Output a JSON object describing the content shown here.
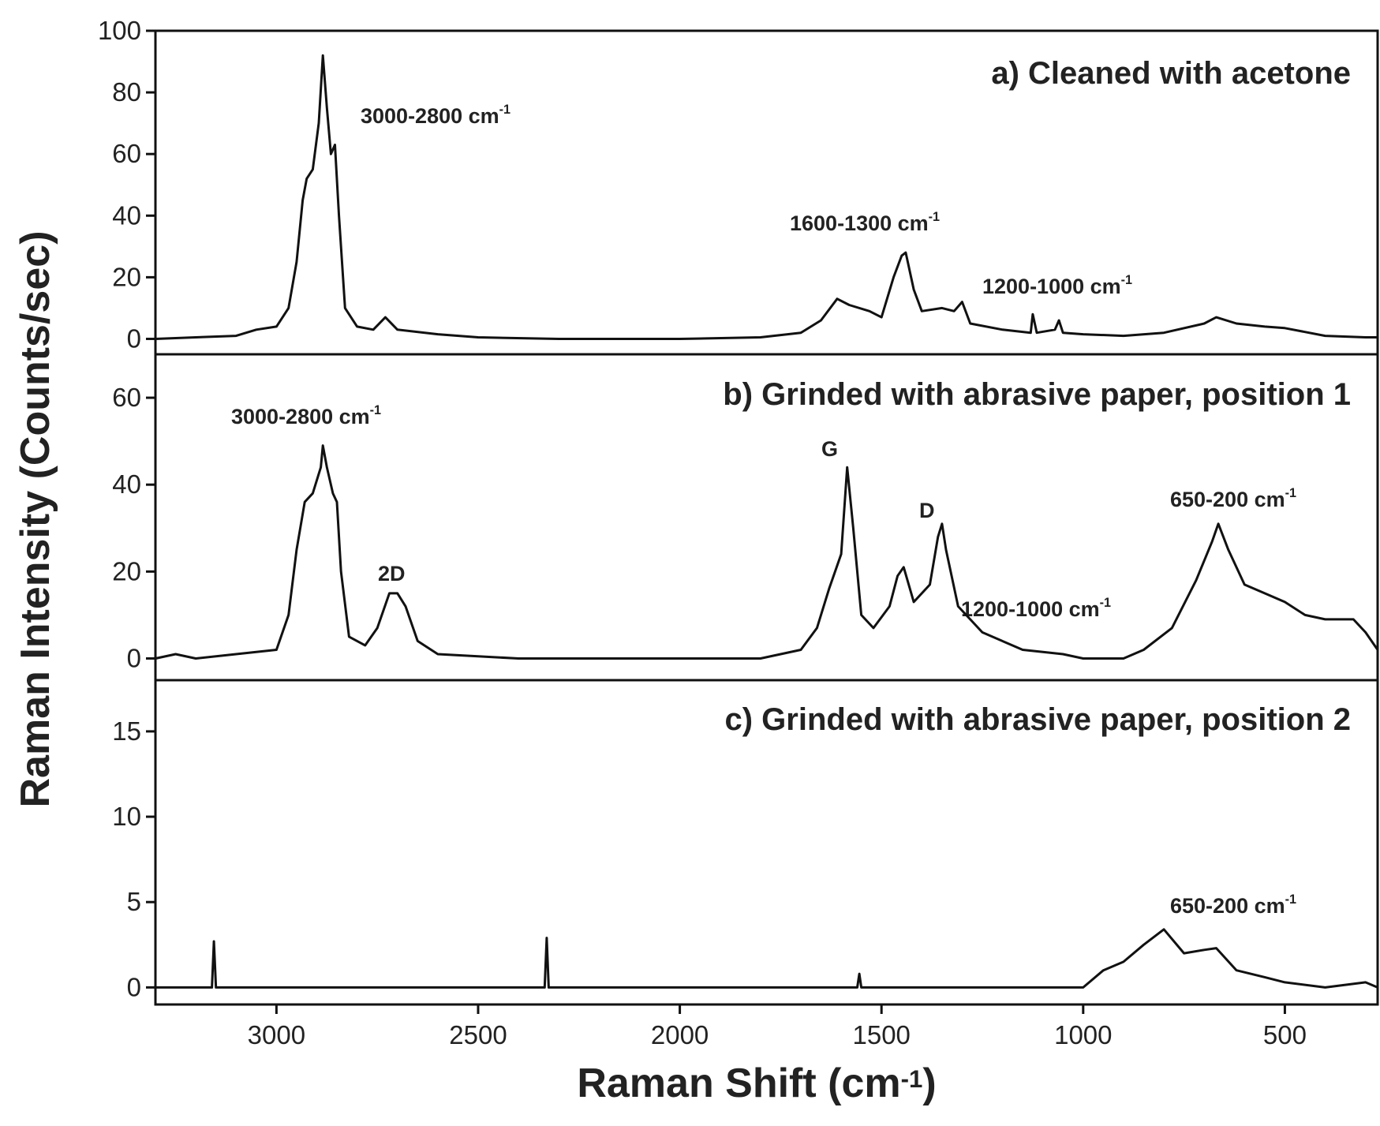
{
  "ylabel": "Raman Intensity (Counts/sec)",
  "xlabel": {
    "text": "Raman Shift (cm",
    "sup": "-1",
    "after": ")"
  },
  "chart_data": [
    {
      "type": "line",
      "title": "a) Cleaned with acetone",
      "xlim": [
        3300,
        270
      ],
      "ylim": [
        -5,
        100
      ],
      "yticks": [
        0,
        20,
        40,
        60,
        80,
        100
      ],
      "annotations": [
        {
          "text": "3000-2800 cm",
          "sup": "-1"
        },
        {
          "text": "1600-1300 cm",
          "sup": "-1"
        },
        {
          "text": "1200-1000 cm",
          "sup": "-1"
        }
      ],
      "x": [
        3300,
        3200,
        3100,
        3050,
        3000,
        2970,
        2950,
        2935,
        2925,
        2910,
        2895,
        2885,
        2875,
        2865,
        2855,
        2845,
        2830,
        2800,
        2760,
        2730,
        2700,
        2600,
        2500,
        2300,
        2000,
        1800,
        1700,
        1650,
        1610,
        1580,
        1530,
        1500,
        1470,
        1450,
        1440,
        1420,
        1400,
        1350,
        1320,
        1300,
        1280,
        1200,
        1130,
        1125,
        1115,
        1070,
        1060,
        1050,
        1000,
        900,
        800,
        700,
        670,
        620,
        550,
        500,
        400,
        300,
        270
      ],
      "series": [
        {
          "color": "#111111",
          "values": [
            0,
            0.5,
            1,
            3,
            4,
            10,
            25,
            45,
            52,
            55,
            70,
            92,
            75,
            60,
            63,
            40,
            10,
            4,
            3,
            7,
            3,
            1.5,
            0.5,
            0,
            0,
            0.5,
            2,
            6,
            13,
            11,
            9,
            7,
            20,
            27,
            28,
            16,
            9,
            10,
            9,
            12,
            5,
            3,
            2,
            8,
            2,
            3,
            6,
            2,
            1.5,
            1,
            2,
            5,
            7,
            5,
            4,
            3.5,
            1,
            0.5,
            0.5
          ]
        }
      ]
    },
    {
      "type": "line",
      "title": "b) Grinded with abrasive paper, position 1",
      "xlim": [
        3300,
        270
      ],
      "ylim": [
        -5,
        70
      ],
      "yticks": [
        0,
        20,
        40,
        60
      ],
      "annotations": [
        {
          "text": "3000-2800 cm",
          "sup": "-1"
        },
        {
          "text": "2D"
        },
        {
          "text": "G"
        },
        {
          "text": "D"
        },
        {
          "text": "1200-1000 cm",
          "sup": "-1"
        },
        {
          "text": "650-200 cm",
          "sup": "-1"
        }
      ],
      "x": [
        3300,
        3250,
        3200,
        3100,
        3000,
        2970,
        2950,
        2930,
        2910,
        2890,
        2885,
        2875,
        2860,
        2850,
        2840,
        2820,
        2780,
        2750,
        2720,
        2700,
        2680,
        2650,
        2600,
        2400,
        2000,
        1800,
        1700,
        1660,
        1630,
        1600,
        1585,
        1570,
        1550,
        1520,
        1480,
        1460,
        1445,
        1420,
        1380,
        1360,
        1350,
        1340,
        1310,
        1250,
        1150,
        1100,
        1050,
        1000,
        900,
        850,
        780,
        720,
        680,
        665,
        640,
        600,
        550,
        500,
        450,
        400,
        330,
        300,
        270
      ],
      "series": [
        {
          "color": "#111111",
          "values": [
            0,
            1,
            0,
            1,
            2,
            10,
            25,
            36,
            38,
            44,
            49,
            44,
            38,
            36,
            20,
            5,
            3,
            7,
            15,
            15,
            12,
            4,
            1,
            0,
            0,
            0,
            2,
            7,
            16,
            24,
            44,
            30,
            10,
            7,
            12,
            19,
            21,
            13,
            17,
            28,
            31,
            25,
            12,
            6,
            2,
            1.5,
            1,
            0,
            0,
            2,
            7,
            18,
            27,
            31,
            25,
            17,
            15,
            13,
            10,
            9,
            9,
            6,
            2
          ]
        }
      ]
    },
    {
      "type": "line",
      "title": "c) Grinded with abrasive paper, position 2",
      "xlim": [
        3300,
        270
      ],
      "ylim": [
        -1,
        18
      ],
      "yticks": [
        0,
        5,
        10,
        15
      ],
      "xticks": [
        3000,
        2500,
        2000,
        1500,
        1000,
        500
      ],
      "annotations": [
        {
          "text": "650-200 cm",
          "sup": "-1"
        }
      ],
      "x": [
        3300,
        3160,
        3155,
        3150,
        2500,
        2335,
        2330,
        2325,
        2000,
        1560,
        1555,
        1550,
        1000,
        950,
        900,
        850,
        800,
        750,
        700,
        670,
        620,
        550,
        500,
        400,
        300,
        270
      ],
      "series": [
        {
          "color": "#111111",
          "values": [
            0,
            0,
            2.7,
            0,
            0,
            0,
            2.9,
            0,
            0,
            0,
            0.8,
            0,
            0,
            1,
            1.5,
            2.5,
            3.4,
            2,
            2.2,
            2.3,
            1,
            0.6,
            0.3,
            0,
            0.3,
            0
          ]
        }
      ]
    }
  ]
}
